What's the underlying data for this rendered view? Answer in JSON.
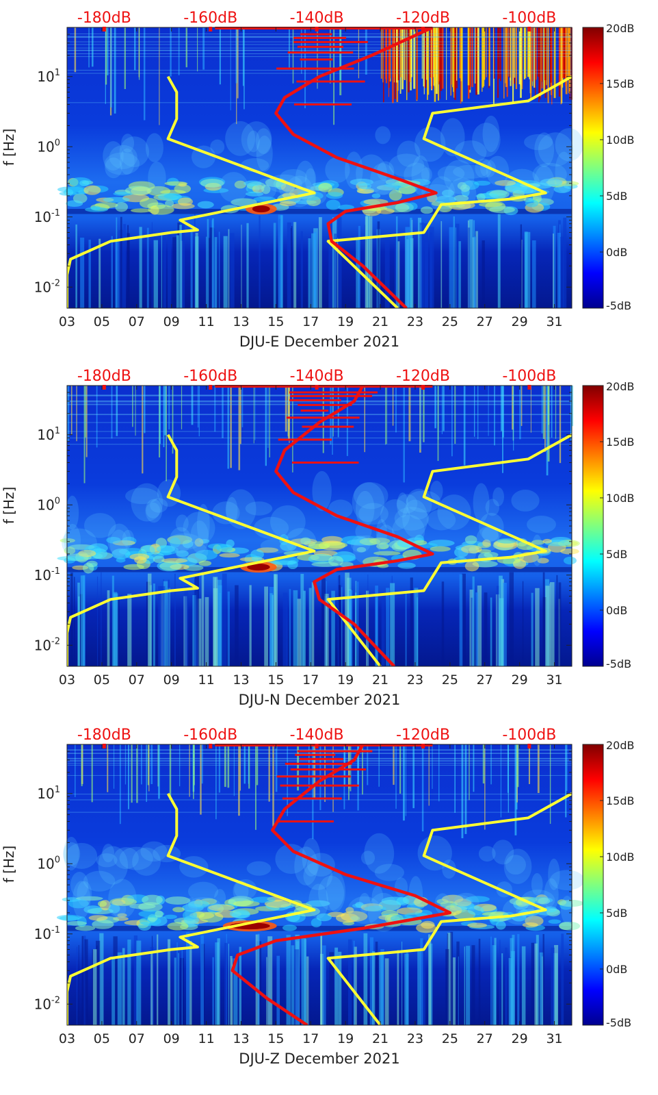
{
  "figure": {
    "type": "spectrogram",
    "x_tick_labels": [
      "03",
      "05",
      "07",
      "09",
      "11",
      "13",
      "15",
      "17",
      "19",
      "21",
      "23",
      "25",
      "27",
      "29",
      "31"
    ],
    "x_range_days": [
      3,
      32
    ],
    "y_label": "f [Hz]",
    "y_tick_labels": [
      "10-2",
      "10-1",
      "100",
      "101"
    ],
    "y_range_log10": [
      -2.3,
      1.7
    ],
    "top_axis_labels": [
      "-180dB",
      "-160dB",
      "-140dB",
      "-120dB",
      "-100dB"
    ],
    "top_axis_range_dB": [
      -187,
      -92
    ],
    "colorbar_labels": [
      "20dB",
      "15dB",
      "10dB",
      "5dB",
      "0dB",
      "-5dB"
    ],
    "colorbar_range_dB": [
      -5,
      20
    ],
    "colors": {
      "model_line": "#ffff33",
      "noise_line": "#ee1111",
      "top_axis_text": "#ee1111",
      "background_low": "#00008b",
      "background_mid": "#1e90ff"
    }
  },
  "chart_data": [
    {
      "type": "heatmap",
      "title": "",
      "xlabel": "DJU-E December 2021",
      "ylabel": "f [Hz]",
      "xlim": [
        3,
        32
      ],
      "ylim_hz": [
        0.005,
        50
      ],
      "colorbar_dB": [
        -5,
        20
      ],
      "microseism_band": {
        "freq_hz": [
          0.1,
          0.3
        ],
        "peak_days": [
          13.8,
          14.5
        ],
        "peak_dB": 20
      },
      "high_freq_noise_days": [
        21,
        32
      ],
      "model_line_yellow": [
        {
          "day": 3.0,
          "hz": 0.005
        },
        {
          "day": 3.0,
          "hz": 0.015
        },
        {
          "day": 3.2,
          "hz": 0.025
        },
        {
          "day": 5.5,
          "hz": 0.045
        },
        {
          "day": 9.0,
          "hz": 0.06
        },
        {
          "day": 10.5,
          "hz": 0.065
        },
        {
          "day": 9.5,
          "hz": 0.09
        },
        {
          "day": 17.2,
          "hz": 0.22
        },
        {
          "day": 8.8,
          "hz": 1.3
        },
        {
          "day": 9.3,
          "hz": 2.5
        },
        {
          "day": 9.3,
          "hz": 6.0
        },
        {
          "day": 8.8,
          "hz": 10.0
        }
      ],
      "model_line_yellow_right": [
        {
          "day": 22.0,
          "hz": 0.005
        },
        {
          "day": 18.0,
          "hz": 0.045
        },
        {
          "day": 23.5,
          "hz": 0.06
        },
        {
          "day": 24.5,
          "hz": 0.15
        },
        {
          "day": 28.5,
          "hz": 0.18
        },
        {
          "day": 30.5,
          "hz": 0.22
        },
        {
          "day": 23.5,
          "hz": 1.3
        },
        {
          "day": 24.0,
          "hz": 3.0
        },
        {
          "day": 29.5,
          "hz": 4.5
        },
        {
          "day": 32.0,
          "hz": 10.0
        }
      ],
      "noise_line_red": [
        {
          "day": 22.5,
          "hz": 0.005
        },
        {
          "day": 20.0,
          "hz": 0.02
        },
        {
          "day": 18.2,
          "hz": 0.045
        },
        {
          "day": 18.0,
          "hz": 0.08
        },
        {
          "day": 19.0,
          "hz": 0.12
        },
        {
          "day": 22.0,
          "hz": 0.16
        },
        {
          "day": 24.2,
          "hz": 0.22
        },
        {
          "day": 22.0,
          "hz": 0.35
        },
        {
          "day": 18.5,
          "hz": 0.7
        },
        {
          "day": 16.0,
          "hz": 1.5
        },
        {
          "day": 15.0,
          "hz": 3.0
        },
        {
          "day": 15.5,
          "hz": 5.0
        },
        {
          "day": 17.5,
          "hz": 10.0
        },
        {
          "day": 20.5,
          "hz": 20.0
        },
        {
          "day": 24.0,
          "hz": 50.0
        }
      ]
    },
    {
      "type": "heatmap",
      "title": "",
      "xlabel": "DJU-N December 2021",
      "ylabel": "f [Hz]",
      "xlim": [
        3,
        32
      ],
      "ylim_hz": [
        0.005,
        50
      ],
      "colorbar_dB": [
        -5,
        20
      ],
      "microseism_band": {
        "freq_hz": [
          0.1,
          0.3
        ],
        "peak_days": [
          13.5,
          14.5
        ],
        "peak_dB": 20
      },
      "high_freq_noise_days": [],
      "model_line_yellow": [
        {
          "day": 3.0,
          "hz": 0.005
        },
        {
          "day": 3.0,
          "hz": 0.015
        },
        {
          "day": 3.2,
          "hz": 0.025
        },
        {
          "day": 5.5,
          "hz": 0.045
        },
        {
          "day": 9.0,
          "hz": 0.06
        },
        {
          "day": 10.5,
          "hz": 0.065
        },
        {
          "day": 9.5,
          "hz": 0.09
        },
        {
          "day": 17.2,
          "hz": 0.22
        },
        {
          "day": 8.8,
          "hz": 1.3
        },
        {
          "day": 9.3,
          "hz": 2.5
        },
        {
          "day": 9.3,
          "hz": 6.0
        },
        {
          "day": 8.8,
          "hz": 10.0
        }
      ],
      "model_line_yellow_right": [
        {
          "day": 21.0,
          "hz": 0.005
        },
        {
          "day": 18.0,
          "hz": 0.045
        },
        {
          "day": 23.5,
          "hz": 0.06
        },
        {
          "day": 24.5,
          "hz": 0.15
        },
        {
          "day": 28.5,
          "hz": 0.18
        },
        {
          "day": 30.5,
          "hz": 0.22
        },
        {
          "day": 23.5,
          "hz": 1.3
        },
        {
          "day": 24.0,
          "hz": 3.0
        },
        {
          "day": 29.5,
          "hz": 4.5
        },
        {
          "day": 32.0,
          "hz": 10.0
        }
      ],
      "noise_line_red": [
        {
          "day": 21.8,
          "hz": 0.005
        },
        {
          "day": 19.5,
          "hz": 0.02
        },
        {
          "day": 17.5,
          "hz": 0.045
        },
        {
          "day": 17.2,
          "hz": 0.08
        },
        {
          "day": 18.5,
          "hz": 0.12
        },
        {
          "day": 22.0,
          "hz": 0.16
        },
        {
          "day": 24.0,
          "hz": 0.2
        },
        {
          "day": 22.0,
          "hz": 0.35
        },
        {
          "day": 18.5,
          "hz": 0.7
        },
        {
          "day": 16.0,
          "hz": 1.5
        },
        {
          "day": 15.0,
          "hz": 3.0
        },
        {
          "day": 15.5,
          "hz": 6.0
        },
        {
          "day": 17.5,
          "hz": 15.0
        },
        {
          "day": 19.5,
          "hz": 30.0
        },
        {
          "day": 20.0,
          "hz": 50.0
        }
      ]
    },
    {
      "type": "heatmap",
      "title": "",
      "xlabel": "DJU-Z December 2021",
      "ylabel": "f [Hz]",
      "xlim": [
        3,
        32
      ],
      "ylim_hz": [
        0.005,
        50
      ],
      "colorbar_dB": [
        -5,
        20
      ],
      "microseism_band": {
        "freq_hz": [
          0.1,
          0.3
        ],
        "peak_days": [
          12.5,
          14.5
        ],
        "peak_dB": 20
      },
      "high_freq_noise_days": [],
      "model_line_yellow": [
        {
          "day": 3.0,
          "hz": 0.005
        },
        {
          "day": 3.0,
          "hz": 0.015
        },
        {
          "day": 3.2,
          "hz": 0.025
        },
        {
          "day": 5.5,
          "hz": 0.045
        },
        {
          "day": 9.0,
          "hz": 0.06
        },
        {
          "day": 10.5,
          "hz": 0.065
        },
        {
          "day": 9.5,
          "hz": 0.09
        },
        {
          "day": 17.2,
          "hz": 0.22
        },
        {
          "day": 8.8,
          "hz": 1.3
        },
        {
          "day": 9.3,
          "hz": 2.5
        },
        {
          "day": 9.3,
          "hz": 6.0
        },
        {
          "day": 8.8,
          "hz": 10.0
        }
      ],
      "model_line_yellow_right": [
        {
          "day": 21.0,
          "hz": 0.005
        },
        {
          "day": 18.0,
          "hz": 0.045
        },
        {
          "day": 23.5,
          "hz": 0.06
        },
        {
          "day": 24.5,
          "hz": 0.15
        },
        {
          "day": 28.5,
          "hz": 0.18
        },
        {
          "day": 30.5,
          "hz": 0.22
        },
        {
          "day": 23.5,
          "hz": 1.3
        },
        {
          "day": 24.0,
          "hz": 3.0
        },
        {
          "day": 29.5,
          "hz": 4.5
        },
        {
          "day": 32.0,
          "hz": 10.0
        }
      ],
      "noise_line_red": [
        {
          "day": 16.8,
          "hz": 0.005
        },
        {
          "day": 14.5,
          "hz": 0.012
        },
        {
          "day": 12.5,
          "hz": 0.03
        },
        {
          "day": 12.8,
          "hz": 0.05
        },
        {
          "day": 15.0,
          "hz": 0.08
        },
        {
          "day": 20.0,
          "hz": 0.12
        },
        {
          "day": 25.0,
          "hz": 0.2
        },
        {
          "day": 23.0,
          "hz": 0.35
        },
        {
          "day": 19.0,
          "hz": 0.7
        },
        {
          "day": 16.0,
          "hz": 1.5
        },
        {
          "day": 14.8,
          "hz": 3.0
        },
        {
          "day": 15.5,
          "hz": 6.0
        },
        {
          "day": 17.5,
          "hz": 15.0
        },
        {
          "day": 19.5,
          "hz": 30.0
        },
        {
          "day": 20.0,
          "hz": 50.0
        }
      ]
    }
  ]
}
